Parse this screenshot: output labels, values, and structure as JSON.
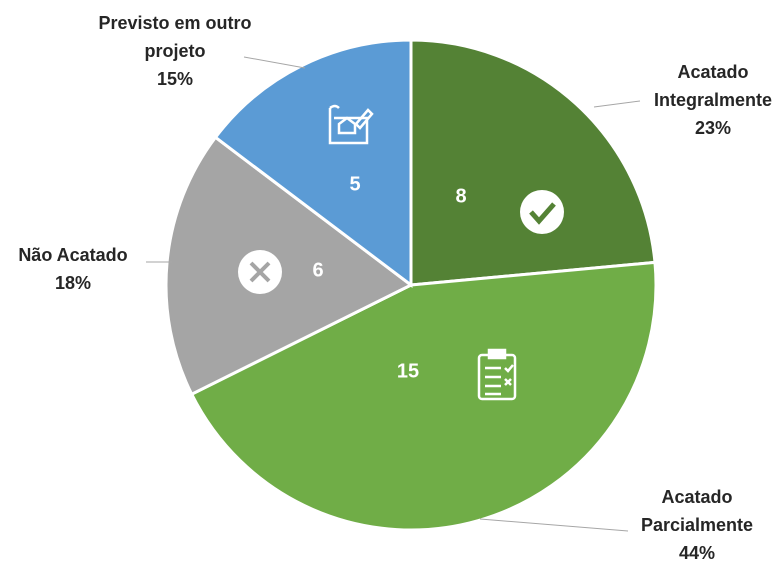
{
  "chart_data": {
    "type": "pie",
    "categories": [
      "Acatado Integralmente",
      "Acatado Parcialmente",
      "Não Acatado",
      "Previsto em outro projeto"
    ],
    "values": [
      8,
      15,
      6,
      5
    ],
    "percent_labels": [
      "23%",
      "44%",
      "18%",
      "15%"
    ],
    "colors": [
      "#548235",
      "#70ad47",
      "#a5a5a5",
      "#5b9bd5"
    ]
  }
}
